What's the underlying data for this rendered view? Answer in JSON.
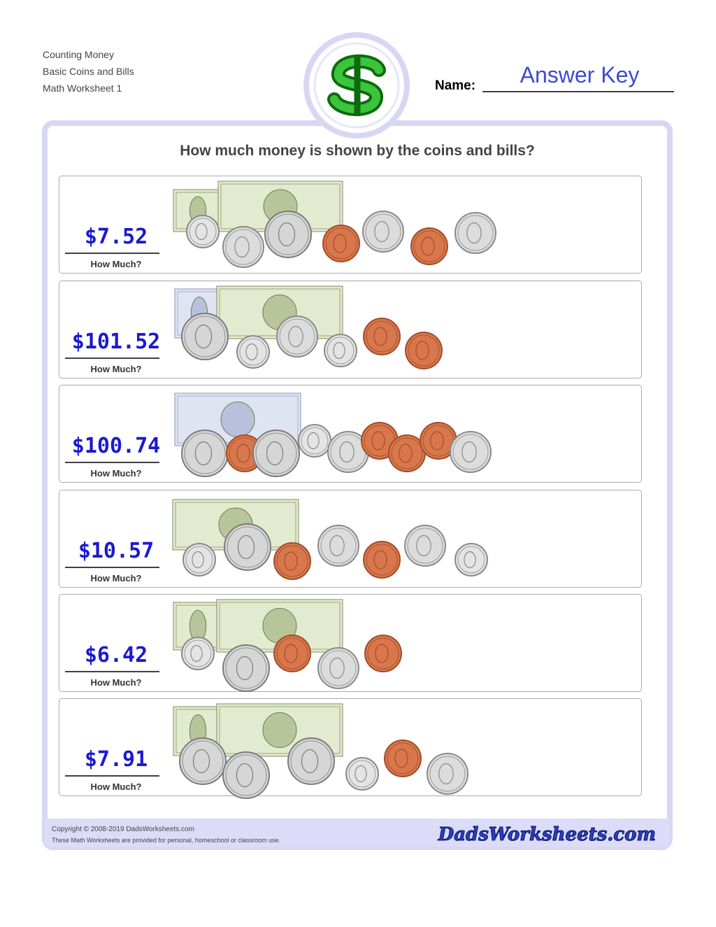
{
  "header": {
    "lines": [
      "Counting Money",
      "Basic Coins and Bills",
      "Math Worksheet 1"
    ],
    "name_label": "Name:",
    "answer_key": "Answer Key"
  },
  "question": "How much money is shown by the coins and bills?",
  "problems": [
    {
      "answer": "$7.52",
      "label": "How Much?"
    },
    {
      "answer": "$101.52",
      "label": "How Much?"
    },
    {
      "answer": "$100.74",
      "label": "How Much?"
    },
    {
      "answer": "$10.57",
      "label": "How Much?"
    },
    {
      "answer": "$6.42",
      "label": "How Much?"
    },
    {
      "answer": "$7.91",
      "label": "How Much?"
    }
  ],
  "footer": {
    "copyright": "Copyright © 2008-2019 DadsWorksheets.com",
    "notice": "These Math Worksheets are provided for personal, homeschool or classroom use.",
    "logo": "DadsWorksheets.com"
  }
}
